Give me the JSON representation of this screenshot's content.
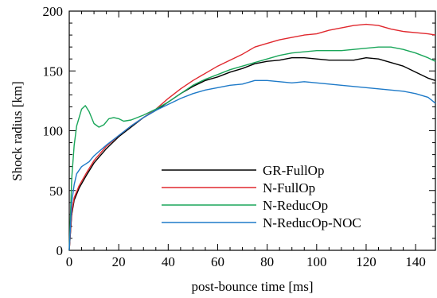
{
  "chart_data": {
    "type": "line",
    "title": "",
    "xlabel": "post-bounce time [ms]",
    "ylabel": "Shock radius [km]",
    "xlim": [
      0,
      148
    ],
    "ylim": [
      0,
      200
    ],
    "xticks": [
      0,
      20,
      40,
      60,
      80,
      100,
      120,
      140
    ],
    "yticks": [
      0,
      50,
      100,
      150,
      200
    ],
    "grid": false,
    "legend_position": "lower-right",
    "series": [
      {
        "name": "GR-FullOp",
        "color": "#000000",
        "x": [
          0,
          1,
          2,
          4,
          7,
          10,
          15,
          20,
          25,
          30,
          35,
          40,
          45,
          50,
          55,
          60,
          65,
          70,
          75,
          80,
          85,
          90,
          95,
          100,
          105,
          110,
          115,
          120,
          125,
          130,
          135,
          140,
          145,
          148
        ],
        "y": [
          0,
          30,
          42,
          52,
          63,
          73,
          85,
          95,
          103,
          111,
          117,
          124,
          131,
          137,
          142,
          145,
          149,
          152,
          156,
          158,
          159,
          161,
          161,
          160,
          159,
          159,
          159,
          161,
          160,
          157,
          154,
          149,
          144,
          142
        ]
      },
      {
        "name": "N-FullOp",
        "color": "#e0282e",
        "x": [
          0,
          1,
          2,
          4,
          7,
          10,
          15,
          20,
          25,
          30,
          35,
          40,
          45,
          50,
          55,
          60,
          65,
          70,
          75,
          80,
          85,
          90,
          95,
          100,
          105,
          110,
          115,
          120,
          125,
          130,
          135,
          140,
          145,
          148
        ],
        "y": [
          0,
          32,
          44,
          54,
          65,
          75,
          87,
          96,
          104,
          111,
          118,
          127,
          135,
          142,
          148,
          154,
          159,
          164,
          170,
          173,
          176,
          178,
          180,
          181,
          184,
          186,
          188,
          189,
          188,
          185,
          183,
          182,
          181,
          180
        ]
      },
      {
        "name": "N-ReducOp",
        "color": "#1aa65a",
        "x": [
          0,
          1,
          2,
          3,
          5,
          6.5,
          8,
          10,
          12,
          14,
          16,
          18,
          20,
          22,
          25,
          30,
          35,
          40,
          45,
          50,
          55,
          60,
          65,
          70,
          75,
          80,
          85,
          90,
          95,
          100,
          105,
          110,
          115,
          120,
          125,
          130,
          135,
          140,
          145,
          148
        ],
        "y": [
          0,
          60,
          88,
          104,
          118,
          121,
          116,
          106,
          103,
          105,
          110,
          111,
          110,
          108,
          109,
          113,
          118,
          124,
          131,
          138,
          143,
          147,
          151,
          154,
          157,
          160,
          163,
          165,
          166,
          167,
          167,
          167,
          168,
          169,
          170,
          170,
          168,
          165,
          161,
          158
        ]
      },
      {
        "name": "N-ReducOp-NOC",
        "color": "#1e7ac8",
        "x": [
          0,
          1,
          2,
          3,
          5,
          8,
          10,
          15,
          20,
          25,
          30,
          35,
          40,
          45,
          50,
          55,
          60,
          65,
          70,
          75,
          80,
          85,
          90,
          95,
          100,
          105,
          110,
          115,
          120,
          125,
          130,
          135,
          140,
          145,
          148
        ],
        "y": [
          0,
          40,
          55,
          64,
          70,
          74,
          79,
          88,
          96,
          104,
          111,
          117,
          122,
          127,
          131,
          134,
          136,
          138,
          139,
          142,
          142,
          141,
          140,
          141,
          140,
          139,
          138,
          137,
          136,
          135,
          134,
          133,
          131,
          128,
          123
        ]
      }
    ]
  }
}
